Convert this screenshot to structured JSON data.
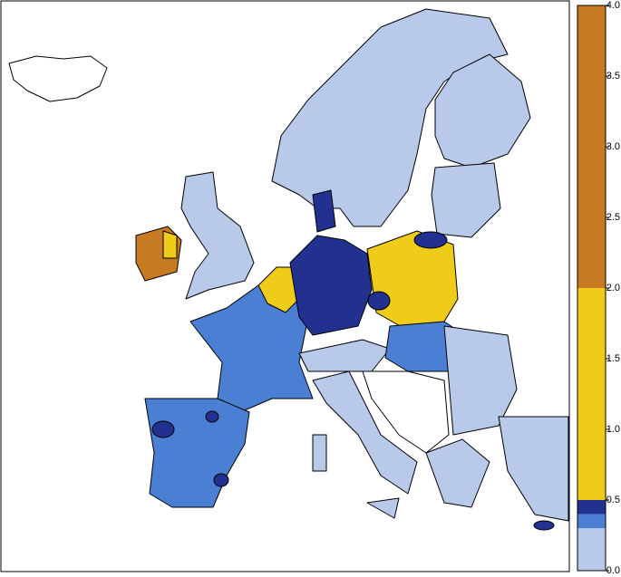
{
  "chart_data": {
    "type": "colorbar",
    "bins": [
      0,
      0.3,
      0.4,
      0.5,
      2.0,
      4.0
    ],
    "colors": [
      "#b9c9ea",
      "#4a7fd4",
      "#22318f",
      "#f0cc1a",
      "#c87a22"
    ],
    "ylim": [
      0,
      4
    ],
    "yticks": [
      {
        "value": 0,
        "label": "0.0"
      },
      0.5,
      {
        "value": 1,
        "label": "1.0"
      },
      1.5,
      {
        "value": 2,
        "label": "2.0"
      },
      2.5,
      {
        "value": 3,
        "label": "3.0"
      },
      3.5,
      {
        "value": 4,
        "label": "4.0"
      }
    ]
  }
}
